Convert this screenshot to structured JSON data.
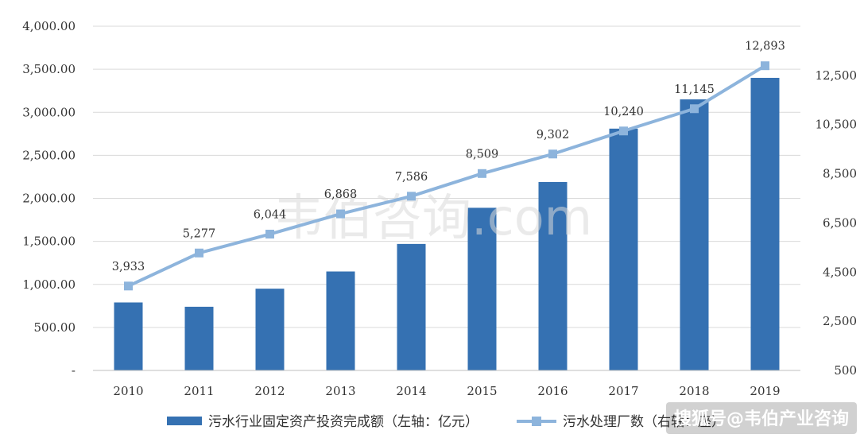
{
  "chart_data": {
    "type": "bar",
    "categories": [
      "2010",
      "2011",
      "2012",
      "2013",
      "2014",
      "2015",
      "2016",
      "2017",
      "2018",
      "2019"
    ],
    "series": [
      {
        "name": "污水行业固定资产投资完成额（左轴：亿元）",
        "type": "bar",
        "axis": "left",
        "color": "#3571b2",
        "values": [
          790,
          740,
          950,
          1150,
          1470,
          1890,
          2190,
          2810,
          3150,
          3400
        ]
      },
      {
        "name": "污水处理厂数（右轴：座）",
        "type": "line",
        "axis": "right",
        "color": "#8db4dc",
        "values": [
          3933,
          5277,
          6044,
          6868,
          7586,
          8509,
          9302,
          10240,
          11145,
          12893
        ],
        "labels": [
          "3,933",
          "5,277",
          "6,044",
          "6,868",
          "7,586",
          "8,509",
          "9,302",
          "10,240",
          "11,145",
          "12,893"
        ]
      }
    ],
    "y_left": {
      "range": [
        0,
        4000
      ],
      "ticks": [
        0,
        500,
        1000,
        1500,
        2000,
        2500,
        3000,
        3500,
        4000
      ],
      "tick_labels": [
        "-",
        "500.00",
        "1,000.00",
        "1,500.00",
        "2,000.00",
        "2,500.00",
        "3,000.00",
        "3,500.00",
        "4,000.00"
      ]
    },
    "y_right": {
      "range": [
        500,
        14500
      ],
      "ticks": [
        500,
        2500,
        4500,
        6500,
        8500,
        10500,
        12500
      ],
      "tick_labels": [
        "500",
        "2,500",
        "4,500",
        "6,500",
        "8,500",
        "10,500",
        "12,500"
      ]
    },
    "grid": true,
    "legend_position": "bottom"
  },
  "legend": {
    "bar_label": "污水行业固定资产投资完成额（左轴：亿元）",
    "line_label": "污水处理厂数（右轴：座）"
  },
  "watermarks": {
    "center": "韦伯咨询.com",
    "corner": "搜狐号@韦伯产业咨询"
  }
}
